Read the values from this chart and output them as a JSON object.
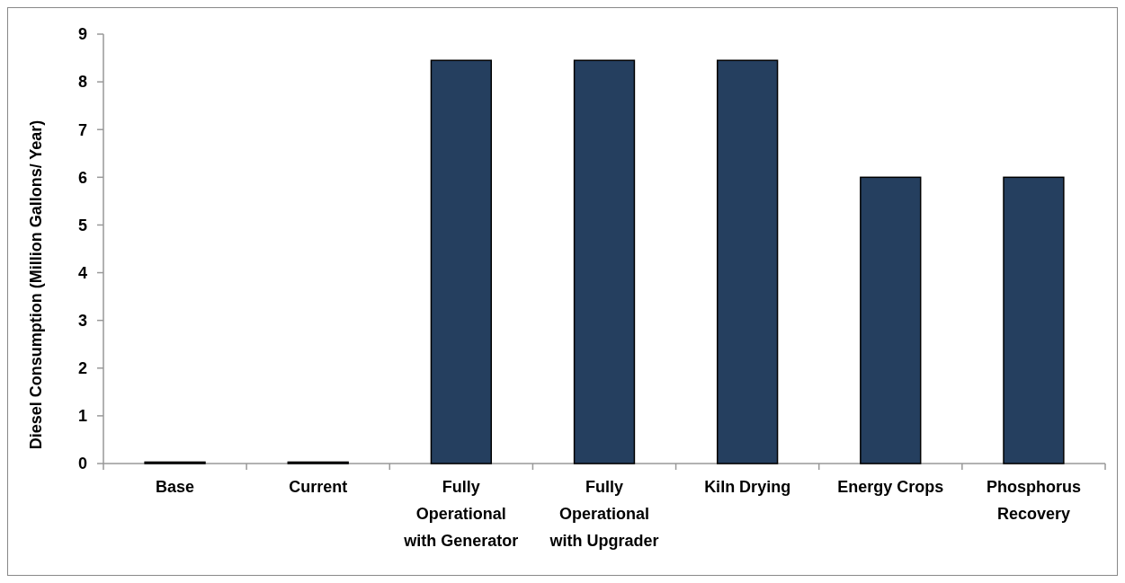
{
  "chart_data": {
    "type": "bar",
    "ylabel": "Diesel Consumption (Million Gallons/ Year)",
    "categories": [
      "Base",
      "Current",
      "Fully Operational with Generator",
      "Fully Operational with Upgrader",
      "Kiln Drying",
      "Energy Crops",
      "Phosphorus Recovery"
    ],
    "values": [
      0.03,
      0.03,
      8.45,
      8.45,
      8.45,
      6.0,
      6.0
    ],
    "color": "#253f5f",
    "ylim": [
      0,
      9
    ],
    "yticks": [
      0,
      1,
      2,
      3,
      4,
      5,
      6,
      7,
      8,
      9
    ],
    "grid": false
  }
}
